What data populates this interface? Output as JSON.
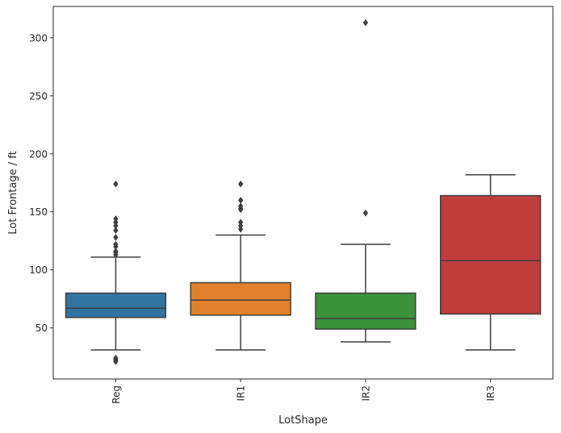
{
  "chart_data": {
    "type": "box",
    "title": "",
    "xlabel": "LotShape",
    "ylabel": "Lot Frontage / ft",
    "ylim": [
      6,
      327
    ],
    "yticks": [
      50,
      100,
      150,
      200,
      250,
      300
    ],
    "grid": false,
    "legend": "none",
    "categories": [
      "Reg",
      "IR1",
      "IR2",
      "IR3"
    ],
    "boxes": [
      {
        "category": "Reg",
        "color": "#3274a1",
        "whisker_low": 31,
        "q1": 59,
        "median": 67,
        "q3": 80,
        "whisker_high": 111,
        "outliers": [
          21,
          22,
          23,
          24,
          113,
          115,
          116,
          120,
          122,
          128,
          134,
          138,
          141,
          144,
          174
        ]
      },
      {
        "category": "IR1",
        "color": "#e1812c",
        "whisker_low": 31,
        "q1": 61,
        "median": 74,
        "q3": 89,
        "whisker_high": 130,
        "outliers": [
          135,
          138,
          141,
          152,
          153,
          155,
          160,
          174
        ]
      },
      {
        "category": "IR2",
        "color": "#3a923a",
        "whisker_low": 38,
        "q1": 49,
        "median": 58,
        "q3": 80,
        "whisker_high": 122,
        "outliers": [
          149,
          313
        ]
      },
      {
        "category": "IR3",
        "color": "#c03d3e",
        "whisker_low": 31,
        "q1": 62,
        "median": 108,
        "q3": 164,
        "whisker_high": 182,
        "outliers": []
      }
    ]
  }
}
